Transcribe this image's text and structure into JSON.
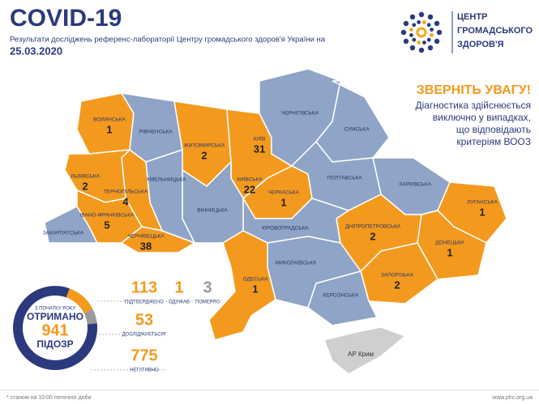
{
  "header": {
    "title": "COVID-19",
    "subtitle": "Результати досліджень референс-лабораторії Центру громадського здоров'я України на",
    "date": "25.03.2020"
  },
  "logo": {
    "lines": [
      "ЦЕНТР",
      "ГРОМАДСЬКОГО",
      "ЗДОРОВ'Я"
    ]
  },
  "notice": {
    "title": "ЗВЕРНІТЬ УВАГУ!",
    "lines": [
      "Діагностика здійснюється",
      "виключно у випадках,",
      "що відповідають",
      "критеріям ВООЗ"
    ]
  },
  "regions": [
    {
      "name": "ВОЛИНСЬКА",
      "cases": 1
    },
    {
      "name": "РІВНЕНСЬКА"
    },
    {
      "name": "ЖИТОМИРСЬКА",
      "cases": 2
    },
    {
      "name": "КИЇВ",
      "cases": 31
    },
    {
      "name": "КИЇВСЬКА",
      "cases": 22
    },
    {
      "name": "ЧЕРНІГІВСЬКА"
    },
    {
      "name": "СУМСЬКА"
    },
    {
      "name": "ХАРКІВСЬКА"
    },
    {
      "name": "ЛУГАНСЬКА",
      "cases": 1
    },
    {
      "name": "ДОНЕЦЬКА",
      "cases": 1
    },
    {
      "name": "ЗАПОРІЗЬКА",
      "cases": 2
    },
    {
      "name": "ДНІПРОПЕТРОВСЬКА",
      "cases": 2
    },
    {
      "name": "ПОЛТАВСЬКА"
    },
    {
      "name": "ЧЕРКАСЬКА",
      "cases": 1
    },
    {
      "name": "КІРОВОГРАДСЬКА"
    },
    {
      "name": "МИКОЛАЇВСЬКА"
    },
    {
      "name": "ХЕРСОНСЬКА"
    },
    {
      "name": "ОДЕСЬКА",
      "cases": 1
    },
    {
      "name": "ВІННИЦЬКА"
    },
    {
      "name": "ХМЕЛЬНИЦЬКА"
    },
    {
      "name": "ТЕРНОПІЛЬСЬКА",
      "cases": 4
    },
    {
      "name": "ЛЬВІВСЬКА",
      "cases": 2
    },
    {
      "name": "ЗАКАРПАТСЬКА"
    },
    {
      "name": "ІВАНО-ФРАНКІВСЬКА",
      "cases": 5
    },
    {
      "name": "ЧЕРНІВЕЦЬКА",
      "cases": 38
    }
  ],
  "crimea": {
    "name": "АР Крим"
  },
  "summary": {
    "caption": "З ПОЧАТКУ РОКУ",
    "label": "ОТРИМАНО",
    "value": 941,
    "unit": "ПІДОЗР",
    "stats": [
      {
        "value": 113,
        "label": "ПІДТВЕРДЖЕНО"
      },
      {
        "value": 1,
        "label": "ОДУЖАВ"
      },
      {
        "value": 3,
        "label": "ПОМЕРЛО"
      },
      {
        "value": 53,
        "label": "ДОСЛІДЖУЄТЬСЯ*"
      },
      {
        "value": 775,
        "label": "НЕГАТИВНО"
      }
    ]
  },
  "footer": {
    "note": "* станом на 10:00 поточної доби",
    "url": "www.phc.org.ua"
  }
}
